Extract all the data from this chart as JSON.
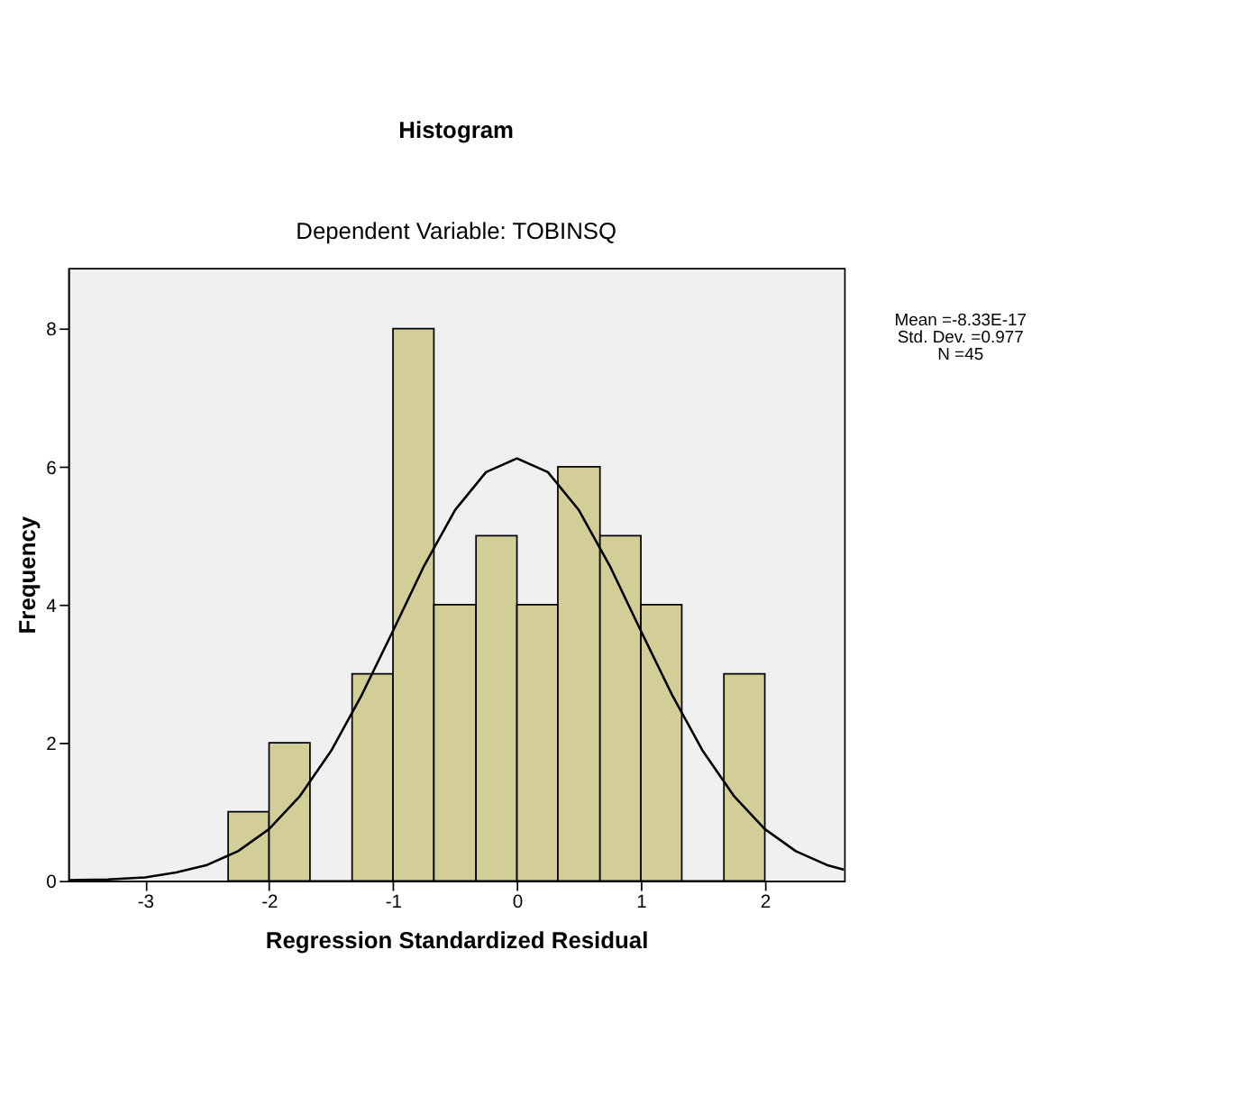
{
  "chart_data": {
    "type": "histogram",
    "title": "Histogram",
    "subtitle": "Dependent Variable: TOBINSQ",
    "xlabel": "Regression Standardized Residual",
    "ylabel": "Frequency",
    "bins": [
      -2.33,
      -2.0,
      -1.67,
      -1.33,
      -1.0,
      -0.67,
      -0.33,
      0.0,
      0.33,
      0.67,
      1.0,
      1.33,
      1.67,
      2.0
    ],
    "values": [
      1,
      2,
      0,
      3,
      8,
      4,
      5,
      4,
      6,
      5,
      4,
      0,
      3
    ],
    "color": "#d3ce97",
    "series": [
      {
        "type": "line",
        "color": "#000000",
        "x": [
          -3.62,
          -3.3,
          -3.0,
          -2.75,
          -2.5,
          -2.25,
          -2.0,
          -1.75,
          -1.5,
          -1.25,
          -1.0,
          -0.75,
          -0.5,
          -0.25,
          0.0,
          0.25,
          0.5,
          0.75,
          1.0,
          1.25,
          1.5,
          1.75,
          2.0,
          2.25,
          2.5,
          2.64
        ],
        "values": [
          0.01,
          0.02,
          0.05,
          0.12,
          0.23,
          0.43,
          0.75,
          1.23,
          1.88,
          2.7,
          3.62,
          4.56,
          5.37,
          5.92,
          6.12,
          5.92,
          5.37,
          4.56,
          3.62,
          2.7,
          1.88,
          1.23,
          0.75,
          0.43,
          0.23,
          0.16
        ]
      }
    ],
    "xlim": [
      -3.62,
      2.64
    ],
    "xticks": [
      -3,
      -2,
      -1,
      0,
      1,
      2
    ],
    "ylim": [
      0,
      8.88
    ],
    "yticks": [
      0,
      2,
      4,
      6,
      8
    ],
    "grid": false,
    "annotations": [
      "Mean =-8.33E-17",
      "Std. Dev. =0.977",
      "N =45"
    ]
  }
}
